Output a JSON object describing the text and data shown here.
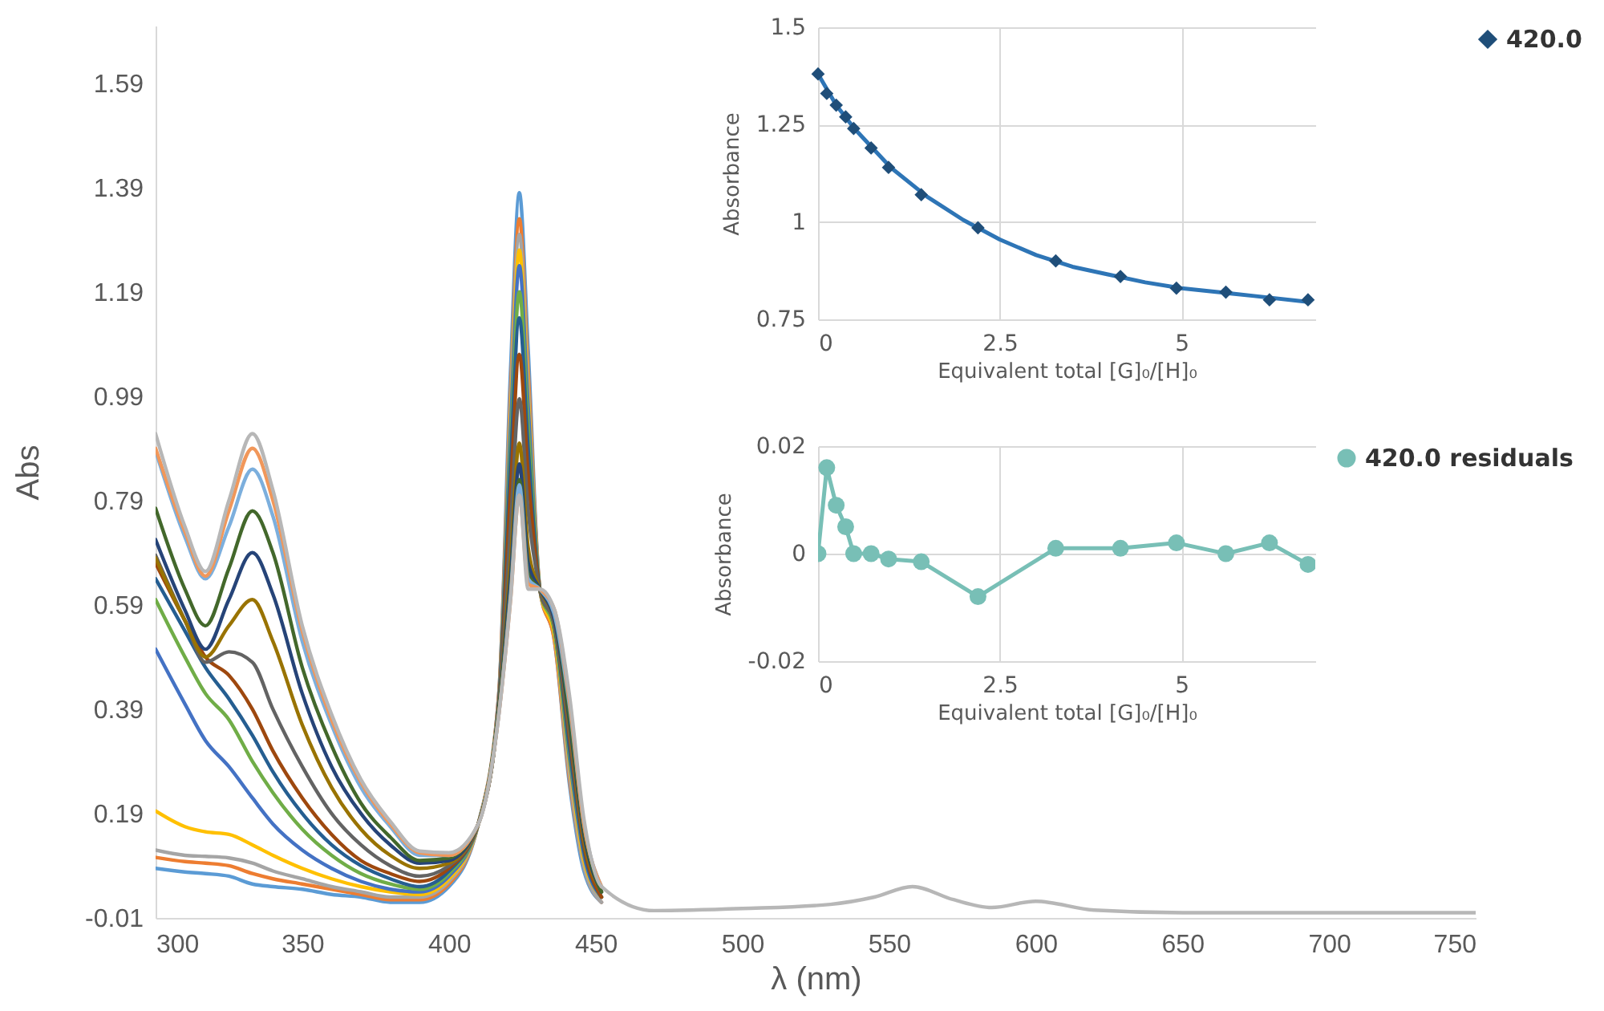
{
  "chart_data": [
    {
      "type": "line",
      "xlabel": "λ (nm)",
      "ylabel": "Abs",
      "xlim": [
        300,
        750
      ],
      "ylim": [
        -0.01,
        1.7
      ],
      "xticks": [
        300,
        350,
        400,
        450,
        500,
        550,
        600,
        650,
        700,
        750
      ],
      "yticks": [
        -0.01,
        0.19,
        0.39,
        0.59,
        0.79,
        0.99,
        1.19,
        1.39,
        1.59
      ],
      "x": [
        300,
        310,
        317,
        325,
        333,
        340,
        350,
        360,
        370,
        380,
        390,
        400,
        410,
        417,
        421,
        424,
        427,
        431,
        436,
        441,
        446,
        452,
        470,
        500,
        530,
        545,
        558,
        572,
        585,
        600,
        620,
        650,
        700,
        750
      ],
      "series": [
        {
          "color": "#5b9bd5",
          "values": [
            0.085,
            0.078,
            0.075,
            0.07,
            0.055,
            0.05,
            0.045,
            0.035,
            0.03,
            0.02,
            0.02,
            0.05,
            0.17,
            0.42,
            1.04,
            1.38,
            1.08,
            0.62,
            0.52,
            0.25,
            0.08,
            0.02,
            null,
            null,
            null,
            null,
            null,
            null,
            null,
            null,
            null,
            null,
            null,
            null
          ]
        },
        {
          "color": "#ed7d31",
          "values": [
            0.106,
            0.098,
            0.095,
            0.09,
            0.075,
            0.065,
            0.055,
            0.045,
            0.035,
            0.025,
            0.025,
            0.055,
            0.17,
            0.42,
            1.0,
            1.33,
            1.04,
            0.62,
            0.52,
            0.26,
            0.09,
            0.02,
            null,
            null,
            null,
            null,
            null,
            null,
            null,
            null,
            null,
            null,
            null,
            null
          ]
        },
        {
          "color": "#a5a5a5",
          "values": [
            0.12,
            0.11,
            0.108,
            0.105,
            0.095,
            0.08,
            0.065,
            0.05,
            0.04,
            0.03,
            0.03,
            0.06,
            0.17,
            0.41,
            0.975,
            1.3,
            1.01,
            0.62,
            0.53,
            0.27,
            0.09,
            0.02,
            null,
            null,
            null,
            null,
            null,
            null,
            null,
            null,
            null,
            null,
            null,
            null
          ]
        },
        {
          "color": "#ffc000",
          "values": [
            0.195,
            0.165,
            0.155,
            0.15,
            0.13,
            0.11,
            0.085,
            0.065,
            0.05,
            0.04,
            0.035,
            0.065,
            0.17,
            0.41,
            0.95,
            1.27,
            0.99,
            0.62,
            0.53,
            0.29,
            0.1,
            0.03,
            null,
            null,
            null,
            null,
            null,
            null,
            null,
            null,
            null,
            null,
            null,
            null
          ]
        },
        {
          "color": "#4472c4",
          "values": [
            0.505,
            0.4,
            0.33,
            0.28,
            0.22,
            0.17,
            0.12,
            0.085,
            0.06,
            0.045,
            0.04,
            0.07,
            0.17,
            0.41,
            0.93,
            1.24,
            0.97,
            0.62,
            0.54,
            0.3,
            0.11,
            0.03,
            null,
            null,
            null,
            null,
            null,
            null,
            null,
            null,
            null,
            null,
            null,
            null
          ]
        },
        {
          "color": "#70ad47",
          "values": [
            0.6,
            0.49,
            0.42,
            0.37,
            0.29,
            0.23,
            0.16,
            0.11,
            0.075,
            0.055,
            0.045,
            0.075,
            0.17,
            0.4,
            0.89,
            1.19,
            0.93,
            0.62,
            0.54,
            0.31,
            0.12,
            0.03,
            null,
            null,
            null,
            null,
            null,
            null,
            null,
            null,
            null,
            null,
            null,
            null
          ]
        },
        {
          "color": "#255e91",
          "values": [
            0.64,
            0.54,
            0.47,
            0.41,
            0.34,
            0.27,
            0.19,
            0.13,
            0.09,
            0.065,
            0.05,
            0.08,
            0.17,
            0.4,
            0.86,
            1.14,
            0.89,
            0.62,
            0.55,
            0.32,
            0.12,
            0.03,
            null,
            null,
            null,
            null,
            null,
            null,
            null,
            null,
            null,
            null,
            null,
            null
          ]
        },
        {
          "color": "#9e480e",
          "values": [
            0.67,
            0.56,
            0.49,
            0.455,
            0.39,
            0.31,
            0.22,
            0.15,
            0.1,
            0.075,
            0.06,
            0.085,
            0.17,
            0.4,
            0.81,
            1.07,
            0.84,
            0.62,
            0.55,
            0.34,
            0.13,
            0.03,
            null,
            null,
            null,
            null,
            null,
            null,
            null,
            null,
            null,
            null,
            null,
            null
          ]
        },
        {
          "color": "#636363",
          "values": [
            0.685,
            0.56,
            0.48,
            0.5,
            0.48,
            0.39,
            0.28,
            0.19,
            0.13,
            0.09,
            0.07,
            0.09,
            0.17,
            0.4,
            0.74,
            0.985,
            0.77,
            0.62,
            0.55,
            0.35,
            0.14,
            0.04,
            null,
            null,
            null,
            null,
            null,
            null,
            null,
            null,
            null,
            null,
            null,
            null
          ]
        },
        {
          "color": "#997300",
          "values": [
            0.68,
            0.56,
            0.49,
            0.55,
            0.6,
            0.52,
            0.36,
            0.24,
            0.16,
            0.11,
            0.085,
            0.095,
            0.17,
            0.39,
            0.675,
            0.9,
            0.7,
            0.62,
            0.56,
            0.36,
            0.14,
            0.04,
            null,
            null,
            null,
            null,
            null,
            null,
            null,
            null,
            null,
            null,
            null,
            null
          ]
        },
        {
          "color": "#264478",
          "values": [
            0.715,
            0.58,
            0.505,
            0.6,
            0.69,
            0.61,
            0.42,
            0.28,
            0.19,
            0.13,
            0.095,
            0.1,
            0.17,
            0.39,
            0.645,
            0.86,
            0.67,
            0.62,
            0.56,
            0.37,
            0.15,
            0.04,
            null,
            null,
            null,
            null,
            null,
            null,
            null,
            null,
            null,
            null,
            null,
            null
          ]
        },
        {
          "color": "#43682b",
          "values": [
            0.775,
            0.62,
            0.55,
            0.66,
            0.77,
            0.69,
            0.47,
            0.32,
            0.21,
            0.145,
            0.1,
            0.105,
            0.17,
            0.39,
            0.62,
            0.83,
            0.65,
            0.62,
            0.57,
            0.38,
            0.16,
            0.04,
            null,
            null,
            null,
            null,
            null,
            null,
            null,
            null,
            null,
            null,
            null,
            null
          ]
        },
        {
          "color": "#7cafdd",
          "values": [
            0.885,
            0.72,
            0.64,
            0.74,
            0.85,
            0.76,
            0.52,
            0.36,
            0.24,
            0.165,
            0.11,
            0.11,
            0.17,
            0.38,
            0.61,
            0.82,
            0.64,
            0.62,
            0.57,
            0.4,
            0.17,
            0.05,
            null,
            null,
            null,
            null,
            null,
            null,
            null,
            null,
            null,
            null,
            null,
            null
          ]
        },
        {
          "color": "#f1975a",
          "values": [
            0.89,
            0.73,
            0.645,
            0.77,
            0.89,
            0.79,
            0.54,
            0.37,
            0.25,
            0.17,
            0.115,
            0.11,
            0.17,
            0.38,
            0.6,
            0.8,
            0.63,
            0.62,
            0.58,
            0.41,
            0.17,
            0.05,
            null,
            null,
            null,
            null,
            null,
            null,
            null,
            null,
            null,
            null,
            null,
            null
          ]
        },
        {
          "color": "#b7b7b7",
          "values": [
            0.918,
            0.74,
            0.654,
            0.79,
            0.918,
            0.81,
            0.55,
            0.38,
            0.255,
            0.175,
            0.118,
            0.115,
            0.17,
            0.38,
            0.6,
            0.8,
            0.62,
            0.62,
            0.58,
            0.42,
            0.18,
            0.05,
            0.004,
            0.008,
            0.016,
            0.03,
            0.05,
            0.025,
            0.01,
            0.022,
            0.005,
            0,
            0,
            0
          ]
        }
      ]
    },
    {
      "type": "scatter",
      "xlabel": "Equivalent total [G]₀/[H]₀",
      "ylabel": "Absorbance",
      "xlim": [
        0,
        6.84
      ],
      "ylim": [
        0.75,
        1.5
      ],
      "xticks": [
        0,
        2.5,
        5
      ],
      "yticks": [
        0.75,
        1,
        1.25,
        1.5
      ],
      "grid": true,
      "legend": "top right",
      "x": [
        0,
        0.12,
        0.25,
        0.38,
        0.49,
        0.73,
        0.97,
        1.42,
        2.2,
        3.27,
        4.16,
        4.93,
        5.61,
        6.21,
        6.74
      ],
      "series": [
        {
          "name": "420.0",
          "color": "#1f4e79",
          "marker": "diamond",
          "values": [
            1.38,
            1.33,
            1.3,
            1.27,
            1.24,
            1.19,
            1.14,
            1.07,
            0.985,
            0.9,
            0.86,
            0.83,
            0.82,
            0.8,
            0.8
          ]
        },
        {
          "type": "line",
          "color": "#2e75b6",
          "x": [
            0,
            0.25,
            0.5,
            1,
            1.5,
            2,
            2.5,
            3,
            3.5,
            4,
            4.5,
            5,
            5.5,
            6,
            6.74
          ],
          "values": [
            1.38,
            1.3,
            1.24,
            1.14,
            1.065,
            1.005,
            0.955,
            0.915,
            0.885,
            0.865,
            0.845,
            0.83,
            0.82,
            0.81,
            0.795
          ]
        }
      ]
    },
    {
      "type": "line",
      "xlabel": "Equivalent total [G]₀/[H]₀",
      "ylabel": "Absorbance",
      "xlim": [
        0,
        6.84
      ],
      "ylim": [
        -0.02,
        0.02
      ],
      "xticks": [
        0,
        2.5,
        5
      ],
      "yticks": [
        -0.02,
        0,
        0.02
      ],
      "grid": true,
      "legend": "right",
      "marker": "circle",
      "x": [
        0,
        0.12,
        0.25,
        0.38,
        0.49,
        0.73,
        0.97,
        1.42,
        2.2,
        3.27,
        4.16,
        4.93,
        5.61,
        6.21,
        6.74
      ],
      "series": [
        {
          "name": "420.0 residuals",
          "color": "#78bfb6",
          "values": [
            0,
            0.016,
            0.009,
            0.005,
            0,
            0,
            -0.001,
            -0.0015,
            -0.008,
            0.001,
            0.001,
            0.002,
            0,
            0.002,
            -0.002
          ]
        }
      ]
    }
  ]
}
